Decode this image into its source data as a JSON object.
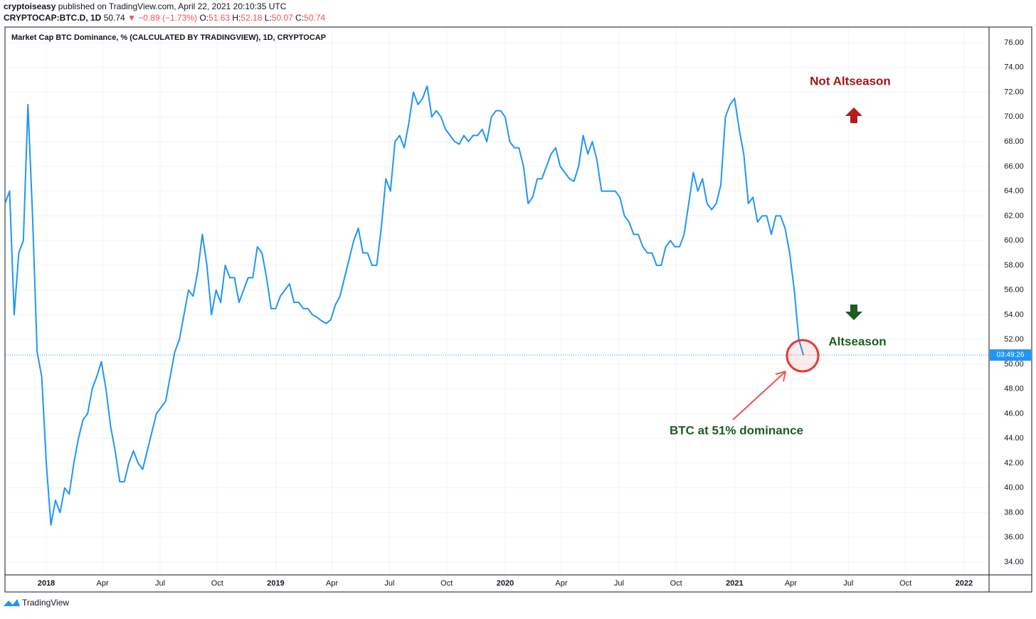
{
  "header": {
    "author": "cryptoiseasy",
    "published": "published on TradingView.com, April 22, 2021 20:10:35 UTC",
    "symbol": "CRYPTOCAP:BTC.D, 1D",
    "last": "50.74",
    "change": "▼ −0.89 (−1.73%)",
    "ohlc": [
      {
        "label": "O:",
        "value": "51.63"
      },
      {
        "label": "H:",
        "value": "52.18"
      },
      {
        "label": "L:",
        "value": "50.07"
      },
      {
        "label": "C:",
        "value": "50.74"
      }
    ]
  },
  "footer": "TradingView",
  "chart_data": {
    "type": "line",
    "title": "Market Cap BTC Dominance, % (CALCULATED BY TRADINGVIEW), 1D, CRYPTOCAP",
    "annotations": [
      "Not Altseason",
      "Altseason",
      "BTC at 51% dominance"
    ],
    "countdown": "03:49:26",
    "grid": true,
    "xlim": [
      2017.823,
      2022.109
    ],
    "ylim": [
      32.96,
      77.27
    ],
    "xticks": [
      2018,
      {
        "value": 2018.245,
        "label": "Apr"
      },
      {
        "value": 2018.496,
        "label": "Jul"
      },
      {
        "value": 2018.745,
        "label": "Oct"
      },
      2019,
      {
        "value": 2019.245,
        "label": "Apr"
      },
      {
        "value": 2019.496,
        "label": "Jul"
      },
      {
        "value": 2019.745,
        "label": "Oct"
      },
      2020,
      {
        "value": 2020.245,
        "label": "Apr"
      },
      {
        "value": 2020.496,
        "label": "Jul"
      },
      {
        "value": 2020.745,
        "label": "Oct"
      },
      2021,
      {
        "value": 2021.245,
        "label": "Apr"
      },
      {
        "value": 2021.496,
        "label": "Jul"
      },
      {
        "value": 2021.745,
        "label": "Oct"
      },
      2022
    ],
    "yticks": [
      {
        "value": 34,
        "label": "34.00"
      },
      {
        "value": 36,
        "label": "36.00"
      },
      {
        "value": 38,
        "label": "38.00"
      },
      {
        "value": 40,
        "label": "40.00"
      },
      {
        "value": 42,
        "label": "42.00"
      },
      {
        "value": 44,
        "label": "44.00"
      },
      {
        "value": 46,
        "label": "46.00"
      },
      {
        "value": 48,
        "label": "48.00"
      },
      {
        "value": 50,
        "label": "50.00"
      },
      {
        "value": 52,
        "label": "52.00"
      },
      {
        "value": 54,
        "label": "54.00"
      },
      {
        "value": 56,
        "label": "56.00"
      },
      {
        "value": 58,
        "label": "58.00"
      },
      {
        "value": 60,
        "label": "60.00"
      },
      {
        "value": 62,
        "label": "62.00"
      },
      {
        "value": 64,
        "label": "64.00"
      },
      {
        "value": 66,
        "label": "66.00"
      },
      {
        "value": 68,
        "label": "68.00"
      },
      {
        "value": 70,
        "label": "70.00"
      },
      {
        "value": 72,
        "label": "72.00"
      },
      {
        "value": 74,
        "label": "74.00"
      },
      {
        "value": 76,
        "label": "76.00"
      }
    ],
    "x": [
      2017.82,
      2017.84,
      2017.86,
      2017.88,
      2017.9,
      2017.92,
      2017.94,
      2017.96,
      2017.98,
      2018,
      2018.02,
      2018.04,
      2018.06,
      2018.08,
      2018.1,
      2018.12,
      2018.14,
      2018.16,
      2018.18,
      2018.2,
      2018.22,
      2018.24,
      2018.26,
      2018.28,
      2018.3,
      2018.32,
      2018.34,
      2018.36,
      2018.38,
      2018.4,
      2018.42,
      2018.44,
      2018.46,
      2018.48,
      2018.5,
      2018.52,
      2018.54,
      2018.56,
      2018.58,
      2018.6,
      2018.62,
      2018.64,
      2018.66,
      2018.68,
      2018.7,
      2018.72,
      2018.74,
      2018.76,
      2018.78,
      2018.8,
      2018.82,
      2018.84,
      2018.86,
      2018.88,
      2018.9,
      2018.92,
      2018.94,
      2018.96,
      2018.98,
      2019,
      2019.02,
      2019.04,
      2019.06,
      2019.08,
      2019.1,
      2019.12,
      2019.14,
      2019.16,
      2019.18,
      2019.2,
      2019.22,
      2019.24,
      2019.26,
      2019.28,
      2019.3,
      2019.32,
      2019.34,
      2019.36,
      2019.38,
      2019.4,
      2019.42,
      2019.44,
      2019.46,
      2019.48,
      2019.5,
      2019.52,
      2019.54,
      2019.56,
      2019.58,
      2019.6,
      2019.62,
      2019.64,
      2019.66,
      2019.68,
      2019.7,
      2019.72,
      2019.74,
      2019.76,
      2019.78,
      2019.8,
      2019.82,
      2019.84,
      2019.86,
      2019.88,
      2019.9,
      2019.92,
      2019.94,
      2019.96,
      2019.98,
      2020,
      2020.02,
      2020.04,
      2020.06,
      2020.08,
      2020.1,
      2020.12,
      2020.14,
      2020.16,
      2020.18,
      2020.2,
      2020.22,
      2020.24,
      2020.26,
      2020.28,
      2020.3,
      2020.32,
      2020.34,
      2020.36,
      2020.38,
      2020.4,
      2020.42,
      2020.44,
      2020.46,
      2020.48,
      2020.5,
      2020.52,
      2020.54,
      2020.56,
      2020.58,
      2020.6,
      2020.62,
      2020.64,
      2020.66,
      2020.68,
      2020.7,
      2020.72,
      2020.74,
      2020.76,
      2020.78,
      2020.8,
      2020.82,
      2020.84,
      2020.86,
      2020.88,
      2020.9,
      2020.92,
      2020.94,
      2020.96,
      2020.98,
      2021,
      2021.02,
      2021.04,
      2021.06,
      2021.08,
      2021.1,
      2021.12,
      2021.14,
      2021.16,
      2021.18,
      2021.2,
      2021.22,
      2021.24,
      2021.26,
      2021.28,
      2021.3
    ],
    "series": [
      {
        "name": "BTC.D",
        "color": "#2196f3",
        "values": [
          63,
          64,
          54,
          59,
          60,
          71,
          62,
          51,
          49,
          42,
          37,
          39,
          38,
          40,
          39.5,
          42,
          44,
          45.5,
          46,
          48,
          49,
          50.2,
          48,
          45,
          43,
          40.5,
          40.5,
          42,
          43,
          42,
          41.5,
          43,
          44.5,
          46,
          46.5,
          47,
          49,
          51,
          52,
          54,
          56,
          55.5,
          57.5,
          60.5,
          58,
          54,
          56,
          55,
          58,
          57,
          57,
          55,
          56,
          57,
          57,
          59.5,
          59,
          57,
          54.5,
          54.5,
          55.5,
          56,
          56.5,
          55,
          55,
          54.5,
          54.5,
          54,
          53.8,
          53.5,
          53.3,
          53.6,
          54.8,
          55.5,
          57,
          58.5,
          60,
          61,
          59,
          59,
          58,
          58,
          61,
          65,
          64,
          68,
          68.5,
          67.5,
          69.5,
          72,
          71,
          71.5,
          72.5,
          70,
          70.5,
          70,
          69,
          68.5,
          68,
          67.8,
          68.5,
          68,
          68.5,
          68.5,
          69,
          68,
          70,
          70.5,
          70.5,
          70,
          68,
          67.5,
          67.5,
          66,
          63,
          63.5,
          65,
          65,
          66,
          67,
          67.5,
          66,
          65.5,
          65,
          64.8,
          66,
          68.5,
          67,
          68,
          66.5,
          64,
          64,
          64,
          64,
          63.5,
          62,
          61.5,
          60.5,
          60.5,
          59.5,
          59,
          59,
          58,
          58,
          59.5,
          60,
          59.5,
          59.5,
          60.5,
          63,
          65.5,
          64,
          65,
          63,
          62.5,
          63,
          64.5,
          70,
          71,
          71.5,
          69,
          67,
          63,
          63.5,
          61.5,
          62,
          62,
          60.5,
          62,
          62,
          61,
          59,
          56,
          52,
          50.74
        ]
      }
    ]
  }
}
